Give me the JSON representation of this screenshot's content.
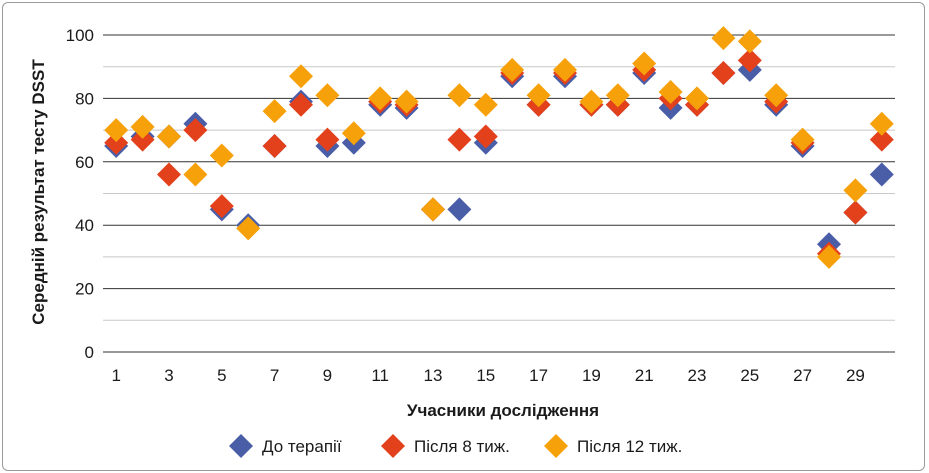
{
  "chart_data": {
    "type": "scatter",
    "xlabel": "Учасники дослідження",
    "ylabel": "Середній результат тесту DSST",
    "ylim": [
      0,
      100
    ],
    "yticks": [
      0,
      20,
      40,
      60,
      80,
      100
    ],
    "xlim": [
      0.5,
      30.5
    ],
    "xticks": [
      1,
      3,
      5,
      7,
      9,
      11,
      13,
      15,
      17,
      19,
      21,
      23,
      25,
      27,
      29
    ],
    "grid": true,
    "legend_position": "bottom",
    "x": [
      1,
      2,
      3,
      4,
      5,
      6,
      7,
      8,
      9,
      10,
      11,
      12,
      13,
      14,
      15,
      16,
      17,
      18,
      19,
      20,
      21,
      22,
      23,
      24,
      25,
      26,
      27,
      28,
      29,
      30
    ],
    "series": [
      {
        "name": "До терапії",
        "color": "#4a5ea8",
        "values": [
          65,
          68,
          68,
          72,
          45,
          40,
          65,
          79,
          65,
          66,
          78,
          77,
          45,
          45,
          66,
          87,
          78,
          87,
          78,
          78,
          88,
          77,
          78,
          88,
          89,
          78,
          65,
          34,
          44,
          56
        ]
      },
      {
        "name": "Після 8 тиж.",
        "color": "#e3401c",
        "values": [
          66,
          67,
          56,
          70,
          46,
          null,
          65,
          78,
          67,
          null,
          79,
          78,
          45,
          67,
          68,
          88,
          78,
          88,
          78,
          78,
          89,
          80,
          78,
          88,
          92,
          79,
          66,
          31,
          44,
          67
        ]
      },
      {
        "name": "Після 12 тиж.",
        "color": "#f6a10a",
        "values": [
          70,
          71,
          68,
          56,
          62,
          39,
          76,
          87,
          81,
          69,
          80,
          79,
          45,
          81,
          78,
          89,
          81,
          89,
          79,
          81,
          91,
          82,
          80,
          99,
          98,
          81,
          67,
          30,
          51,
          72
        ]
      }
    ]
  }
}
